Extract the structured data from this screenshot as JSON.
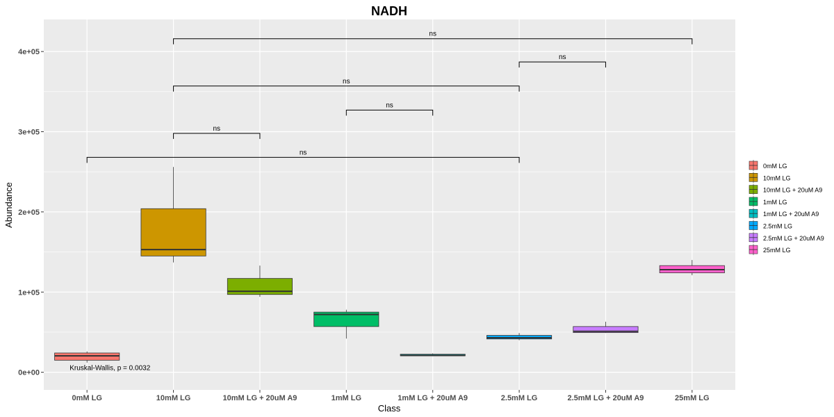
{
  "chart_data": {
    "type": "box",
    "title": "NADH",
    "xlabel": "Class",
    "ylabel": "Abundance",
    "ylim": [
      -22000,
      440000
    ],
    "yticks": [
      0,
      100000,
      200000,
      300000,
      400000
    ],
    "ytick_labels": [
      "0e+00",
      "1e+05",
      "2e+05",
      "3e+05",
      "4e+05"
    ],
    "grid": true,
    "legend_position": "right",
    "categories": [
      "0mM LG",
      "10mM LG",
      "10mM LG + 20uM A9",
      "1mM LG",
      "1mM LG + 20uM A9",
      "2.5mM LG",
      "2.5mM LG + 20uM A9",
      "25mM LG"
    ],
    "colors": [
      "#F8766D",
      "#CD9600",
      "#7CAE00",
      "#00BE67",
      "#00BFC4",
      "#00A9FF",
      "#C77CFF",
      "#FF61CC"
    ],
    "boxes": [
      {
        "category": "0mM LG",
        "whisker_low": 12000,
        "q1": 15000,
        "median": 20500,
        "q3": 24000,
        "whisker_high": 26000
      },
      {
        "category": "10mM LG",
        "whisker_low": 137000,
        "q1": 145000,
        "median": 153000,
        "q3": 204000,
        "whisker_high": 256000
      },
      {
        "category": "10mM LG + 20uM A9",
        "whisker_low": 94000,
        "q1": 97000,
        "median": 101000,
        "q3": 117000,
        "whisker_high": 133000
      },
      {
        "category": "1mM LG",
        "whisker_low": 42000,
        "q1": 57000,
        "median": 72000,
        "q3": 75000,
        "whisker_high": 78000
      },
      {
        "category": "1mM LG + 20uM A9",
        "whisker_low": 20000,
        "q1": 20500,
        "median": 21000,
        "q3": 22500,
        "whisker_high": 23500
      },
      {
        "category": "2.5mM LG",
        "whisker_low": 40000,
        "q1": 41500,
        "median": 43000,
        "q3": 46000,
        "whisker_high": 49000
      },
      {
        "category": "2.5mM LG + 20uM A9",
        "whisker_low": 49000,
        "q1": 49500,
        "median": 51000,
        "q3": 57000,
        "whisker_high": 63000
      },
      {
        "category": "25mM LG",
        "whisker_low": 121000,
        "q1": 124000,
        "median": 128000,
        "q3": 133000,
        "whisker_high": 140000
      }
    ],
    "comparisons": [
      {
        "from": 1,
        "to": 7,
        "y": 416000,
        "label": "ns"
      },
      {
        "from": 5,
        "to": 6,
        "y": 387000,
        "label": "ns"
      },
      {
        "from": 1,
        "to": 5,
        "y": 357000,
        "label": "ns"
      },
      {
        "from": 3,
        "to": 4,
        "y": 327000,
        "label": "ns"
      },
      {
        "from": 1,
        "to": 2,
        "y": 298000,
        "label": "ns"
      },
      {
        "from": 0,
        "to": 5,
        "y": 268000,
        "label": "ns"
      }
    ],
    "annotation": {
      "text": "Kruskal-Wallis, p = 0.0032",
      "x_index": 0,
      "y": 2500
    }
  }
}
